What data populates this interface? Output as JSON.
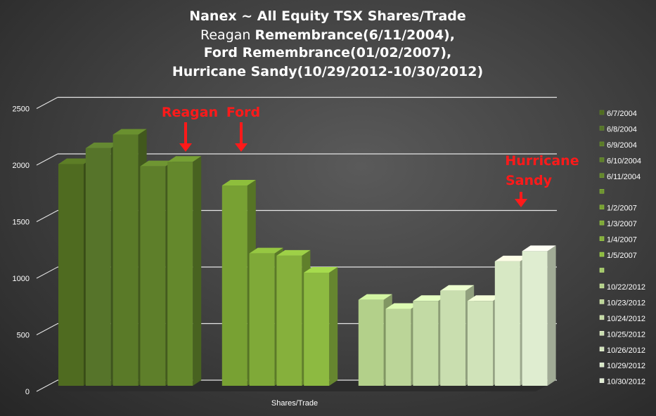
{
  "chart_data": {
    "type": "bar",
    "title_lines": [
      {
        "normal": "",
        "bold": "Nanex ~ All Equity TSX Shares/Trade"
      },
      {
        "normal": "Reagan ",
        "bold": "Remembrance(6/11/2004),"
      },
      {
        "normal": "",
        "bold": "Ford Remembrance(01/02/2007),"
      },
      {
        "normal": "",
        "bold": "Hurricane Sandy(10/29/2012-10/30/2012)"
      }
    ],
    "xlabel": "Shares/Trade",
    "ylabel": "",
    "ylim": [
      0,
      2500
    ],
    "yticks": [
      0,
      500,
      1000,
      1500,
      2000,
      2500
    ],
    "grid": true,
    "legend_position": "right",
    "series": [
      {
        "name": "6/7/2004",
        "value": 1960,
        "color": "#4f6b20"
      },
      {
        "name": "6/8/2004",
        "value": 2100,
        "color": "#56742a"
      },
      {
        "name": "6/9/2004",
        "value": 2220,
        "color": "#5a7a28"
      },
      {
        "name": "6/10/2004",
        "value": 1940,
        "color": "#5e7f2a"
      },
      {
        "name": "6/11/2004",
        "value": 1980,
        "color": "#64882c"
      },
      {
        "name": "",
        "value": null,
        "color": "#6e9530"
      },
      {
        "name": "1/2/2007",
        "value": 1770,
        "color": "#78a133"
      },
      {
        "name": "1/3/2007",
        "value": 1170,
        "color": "#7fa938"
      },
      {
        "name": "1/4/2007",
        "value": 1150,
        "color": "#86b03c"
      },
      {
        "name": "1/5/2007",
        "value": 1000,
        "color": "#8dba41"
      },
      {
        "name": "",
        "value": null,
        "color": "#a3c86a"
      },
      {
        "name": "10/22/2012",
        "value": 760,
        "color": "#b3d08a"
      },
      {
        "name": "10/23/2012",
        "value": 680,
        "color": "#bbd598"
      },
      {
        "name": "10/24/2012",
        "value": 750,
        "color": "#c2daa4"
      },
      {
        "name": "10/25/2012",
        "value": 840,
        "color": "#c9deaf"
      },
      {
        "name": "10/26/2012",
        "value": 750,
        "color": "#d0e3b9"
      },
      {
        "name": "10/29/2012",
        "value": 1100,
        "color": "#d7e8c4"
      },
      {
        "name": "10/30/2012",
        "value": 1190,
        "color": "#dfedd0"
      }
    ],
    "annotations": [
      {
        "text": "Reagan",
        "target": "6/11/2004"
      },
      {
        "text": "Ford",
        "target": "1/2/2007"
      },
      {
        "text": "Hurricane Sandy",
        "target": "10/29/2012"
      }
    ]
  }
}
